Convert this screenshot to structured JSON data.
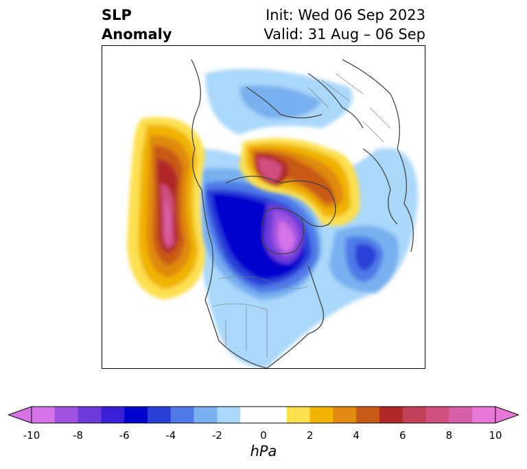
{
  "title": {
    "left_line1": "SLP",
    "left_line2": "Anomaly",
    "right_line1": "Init: Wed 06 Sep 2023",
    "right_line2": "Valid: 31 Aug – 06 Sep"
  },
  "colorbar": {
    "units": "hPa",
    "tick_labels": [
      "-10",
      "-8",
      "-6",
      "-4",
      "-2",
      "0",
      "2",
      "4",
      "6",
      "8",
      "10"
    ],
    "colors": [
      "#d773e8",
      "#a052e0",
      "#6b3ad8",
      "#3a1fd6",
      "#0000cc",
      "#2a3fd8",
      "#4f7ae8",
      "#78b0f0",
      "#aad8fa",
      "#ffffff",
      "#ffffff",
      "#fde050",
      "#f0b400",
      "#e08a10",
      "#c85a18",
      "#b02828",
      "#c0405a",
      "#d05080",
      "#d860a8",
      "#e878d8"
    ]
  }
}
